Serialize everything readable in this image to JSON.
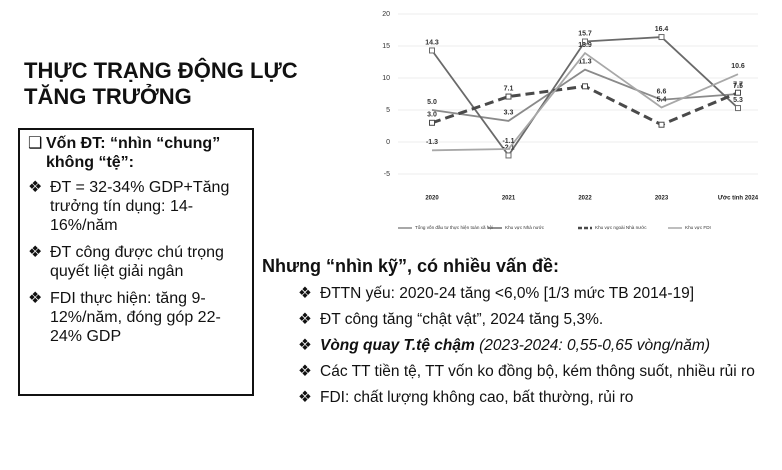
{
  "title_lines": [
    "THỰC TRẠNG ĐỘNG LỰC",
    "TĂNG TRƯỞNG"
  ],
  "left_box": {
    "heading": "Vốn ĐT: “nhìn “chung” không “tệ”:",
    "bullets": [
      "ĐT = 32-34% GDP+Tăng trưởng tín dụng: 14-16%/năm",
      "ĐT công được chú trọng quyết liệt giải ngân",
      "FDI thực hiện: tăng 9-12%/năm, đóng góp 22-24% GDP"
    ]
  },
  "right": {
    "heading": "Nhưng “nhìn kỹ”, có nhiều vấn đề:",
    "bullets": [
      "ĐTTN yếu: 2020-24 tăng <6,0% [1/3 mức TB 2014-19]",
      "ĐT công tăng “chật vật”, 2024 tăng 5,3%.",
      {
        "emphasis": "Vòng quay T.tệ chậm",
        "note": "(2023-2024: 0,55-0,65 vòng/năm)"
      },
      "Các TT tiền tệ, TT vốn ko đồng bộ, kém thông suốt, nhiều rủi ro",
      "FDI: chất lượng không cao, bất thường, rủi ro"
    ]
  },
  "chart_data": {
    "type": "line",
    "categories": [
      "2020",
      "2021",
      "2022",
      "2023",
      "Ước tính 2024"
    ],
    "ylim": [
      -5,
      20
    ],
    "yticks": [
      -5,
      0,
      5,
      10,
      15,
      20
    ],
    "grid": true,
    "legend": "bottom",
    "series": [
      {
        "name": "Tổng vốn đầu tư thực hiện toàn xã hội",
        "color": "#8a8a8a",
        "dash": false,
        "marker": "none",
        "values": [
          5.0,
          3.3,
          11.3,
          6.6,
          7.5
        ],
        "value_labels": [
          "5.0",
          "3.3",
          "11.3",
          "6.6",
          "7.5"
        ]
      },
      {
        "name": "Khu vực Nhà nước",
        "color": "#6a6a6a",
        "dash": false,
        "marker": "square",
        "values": [
          14.3,
          -2.1,
          15.7,
          16.4,
          5.3
        ],
        "value_labels": [
          "14.3",
          "-2.1",
          "15.7",
          "16.4",
          "5.3"
        ]
      },
      {
        "name": "Khu vực ngoài Nhà nước",
        "color": "#4a4a4a",
        "dash": true,
        "marker": "square",
        "values": [
          3.0,
          7.1,
          8.7,
          2.7,
          7.7
        ],
        "value_labels": [
          "3.0",
          "7.1",
          null,
          null,
          "7.7"
        ]
      },
      {
        "name": "Khu vực FDI",
        "color": "#a8a8a8",
        "dash": false,
        "marker": "none",
        "values": [
          -1.3,
          -1.1,
          13.9,
          5.4,
          10.6
        ],
        "value_labels": [
          "-1.3",
          "-1.1",
          "13.9",
          "5.4",
          "10.6"
        ]
      }
    ]
  }
}
